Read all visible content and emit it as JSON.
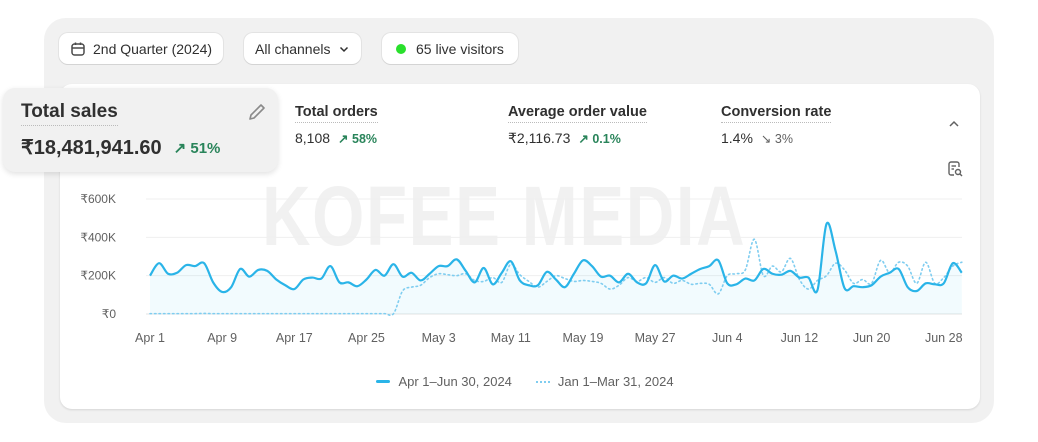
{
  "toolbar": {
    "date_range": "2nd Quarter (2024)",
    "channels": "All channels",
    "live_visitors": "65 live visitors",
    "live_color": "#29e02c"
  },
  "metrics": [
    {
      "label": "Total sales",
      "value": "₹18,481,941.60",
      "change": "51%",
      "direction": "up"
    },
    {
      "label": "Total orders",
      "value": "8,108",
      "change": "58%",
      "direction": "up"
    },
    {
      "label": "Average order value",
      "value": "₹2,116.73",
      "change": "0.1%",
      "direction": "up"
    },
    {
      "label": "Conversion rate",
      "value": "1.4%",
      "change": "3%",
      "direction": "down"
    }
  ],
  "watermark": "KOFEE MEDIA",
  "chart_data": {
    "type": "line",
    "y_ticks": [
      "₹0",
      "₹200K",
      "₹400K",
      "₹600K"
    ],
    "ylim": [
      0,
      600000
    ],
    "x_ticks": [
      "Apr 1",
      "Apr 9",
      "Apr 17",
      "Apr 25",
      "May 3",
      "May 11",
      "May 19",
      "May 27",
      "Jun 4",
      "Jun 12",
      "Jun 20",
      "Jun 28"
    ],
    "grid": true,
    "legend_placement": "bottom",
    "series": [
      {
        "name": "Apr 1–Jun 30, 2024",
        "style": "solid",
        "color": "#2ab4e8",
        "values": [
          200000,
          265000,
          210000,
          215000,
          255000,
          250000,
          265000,
          165000,
          115000,
          140000,
          235000,
          195000,
          230000,
          225000,
          180000,
          150000,
          130000,
          180000,
          190000,
          185000,
          250000,
          165000,
          165000,
          145000,
          180000,
          230000,
          200000,
          260000,
          195000,
          215000,
          175000,
          210000,
          250000,
          250000,
          285000,
          225000,
          165000,
          240000,
          155000,
          215000,
          275000,
          175000,
          150000,
          150000,
          220000,
          180000,
          140000,
          210000,
          280000,
          250000,
          195000,
          200000,
          165000,
          210000,
          165000,
          160000,
          255000,
          170000,
          200000,
          185000,
          210000,
          235000,
          250000,
          280000,
          160000,
          155000,
          185000,
          175000,
          235000,
          210000,
          205000,
          225000,
          190000,
          190000,
          125000,
          470000,
          330000,
          135000,
          145000,
          140000,
          150000,
          195000,
          215000,
          235000,
          140000,
          120000,
          160000,
          155000,
          160000,
          265000,
          215000
        ]
      },
      {
        "name": "Jan 1–Mar 31, 2024",
        "style": "dotted",
        "color": "#7fcdf0",
        "values": [
          2000,
          2000,
          2000,
          2000,
          2000,
          2000,
          3000,
          2000,
          2000,
          2000,
          2000,
          2000,
          2000,
          2000,
          2000,
          2000,
          2000,
          2000,
          2000,
          2000,
          2000,
          2000,
          2000,
          2000,
          2000,
          2000,
          2000,
          2000,
          120000,
          140000,
          150000,
          190000,
          210000,
          205000,
          200000,
          210000,
          175000,
          170000,
          190000,
          165000,
          260000,
          205000,
          170000,
          140000,
          170000,
          200000,
          185000,
          170000,
          175000,
          170000,
          160000,
          130000,
          150000,
          190000,
          170000,
          190000,
          165000,
          190000,
          160000,
          175000,
          155000,
          160000,
          155000,
          105000,
          200000,
          210000,
          230000,
          390000,
          200000,
          250000,
          220000,
          290000,
          180000,
          130000,
          175000,
          200000,
          265000,
          230000,
          160000,
          180000,
          160000,
          280000,
          215000,
          270000,
          250000,
          160000,
          270000,
          160000,
          190000,
          250000,
          270000
        ]
      }
    ]
  }
}
